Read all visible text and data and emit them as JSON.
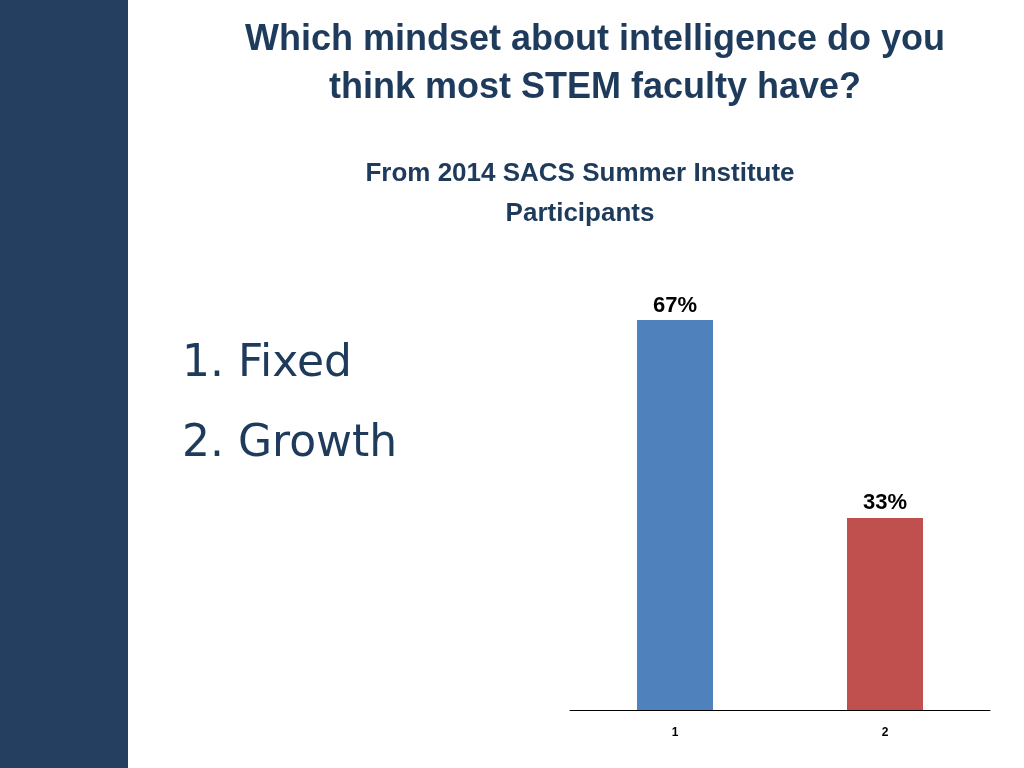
{
  "chart_data": {
    "type": "bar",
    "title": "Which mindset about intelligence do you think most STEM faculty have?",
    "subtitle": "From 2014 SACS Summer Institute Participants",
    "annotations": [
      "1. Fixed",
      "2. Growth"
    ],
    "categories": [
      "1",
      "2"
    ],
    "values": [
      67,
      33
    ],
    "colors": [
      "#4f81bd",
      "#c0504d"
    ],
    "value_labels": [
      "67%",
      "33%"
    ],
    "tick_labels": "x"
  }
}
